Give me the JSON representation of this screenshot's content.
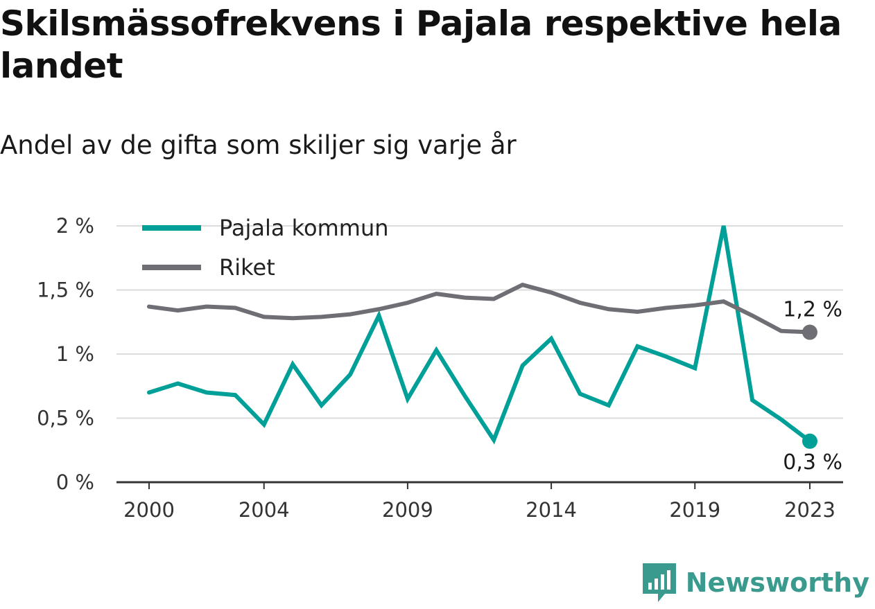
{
  "title": "Skilsmässofrekvens i Pajala respektive hela landet",
  "subtitle": "Andel av de gifta som skiljer sig varje år",
  "brand": {
    "name": "Newsworthy",
    "icon": "newsworthy-logo-icon",
    "color": "#3a9a8e"
  },
  "chart_data": {
    "type": "line",
    "x": [
      2000,
      2001,
      2002,
      2003,
      2004,
      2005,
      2006,
      2007,
      2008,
      2009,
      2010,
      2011,
      2012,
      2013,
      2014,
      2015,
      2016,
      2017,
      2018,
      2019,
      2020,
      2021,
      2022,
      2023
    ],
    "x_ticks": [
      "2000",
      "2004",
      "2009",
      "2014",
      "2019",
      "2023"
    ],
    "y_ticks": [
      "0 %",
      "0,5 %",
      "1 %",
      "1,5 %",
      "2 %"
    ],
    "ylim": [
      0,
      2
    ],
    "grid": true,
    "legend_position": "top-left",
    "series": [
      {
        "name": "Pajala kommun",
        "color": "#00a099",
        "values": [
          0.7,
          0.77,
          0.7,
          0.68,
          0.45,
          0.92,
          0.6,
          0.84,
          1.3,
          0.65,
          1.03,
          0.67,
          0.33,
          0.91,
          1.12,
          0.69,
          0.6,
          1.06,
          0.98,
          0.89,
          2.0,
          0.64,
          0.49,
          0.32
        ],
        "end_label": "0,3 %"
      },
      {
        "name": "Riket",
        "color": "#6f6e75",
        "values": [
          1.37,
          1.34,
          1.37,
          1.36,
          1.29,
          1.28,
          1.29,
          1.31,
          1.35,
          1.4,
          1.47,
          1.44,
          1.43,
          1.54,
          1.48,
          1.4,
          1.35,
          1.33,
          1.36,
          1.38,
          1.41,
          1.3,
          1.18,
          1.17
        ],
        "end_label": "1,2 %"
      }
    ]
  }
}
